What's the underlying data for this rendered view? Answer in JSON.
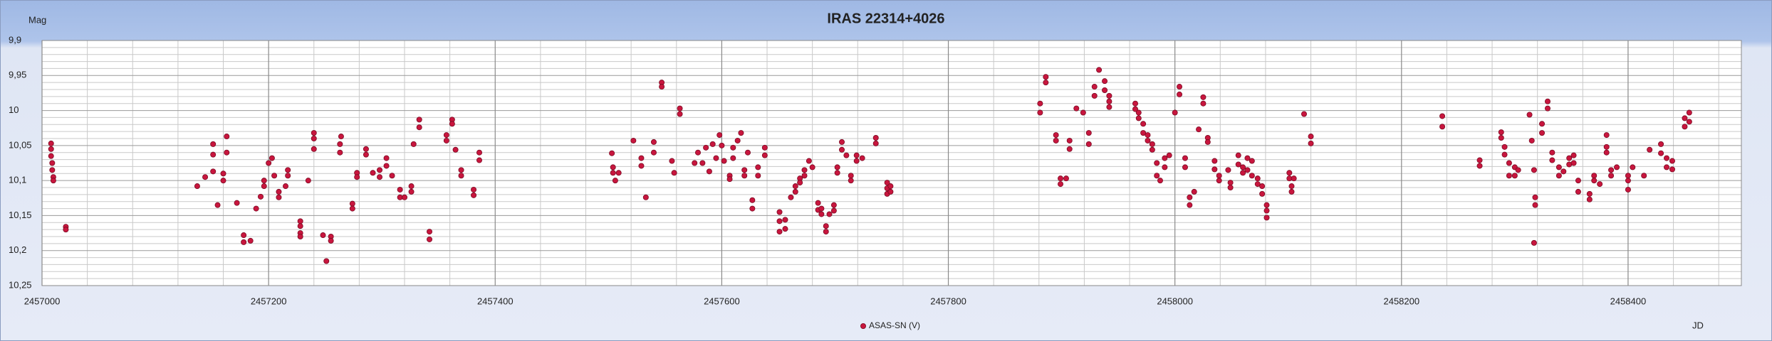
{
  "chart_data": {
    "type": "scatter",
    "title": "IRAS 22314+4026",
    "ylabel": "Mag",
    "xlabel": "JD",
    "xlim": [
      2457000,
      2458500
    ],
    "xticks": [
      2457000,
      2457200,
      2457400,
      2457600,
      2457800,
      2458000,
      2458200,
      2458400
    ],
    "ylim": [
      9.9,
      10.25
    ],
    "y_inverted": true,
    "yticks": [
      {
        "value": 9.9,
        "label": "9,9"
      },
      {
        "value": 9.95,
        "label": "9,95"
      },
      10,
      {
        "value": 10.05,
        "label": "10,05"
      },
      {
        "value": 10.1,
        "label": "10,1"
      },
      {
        "value": 10.15,
        "label": "10,15"
      },
      {
        "value": 10.2,
        "label": "10,2"
      },
      {
        "value": 10.25,
        "label": "10,25"
      }
    ],
    "grid": true,
    "legend": "bottom",
    "x": [
      2457008,
      2457008,
      2457008,
      2457009,
      2457009,
      2457010,
      2457010,
      2457021,
      2457021,
      2457137,
      2457144,
      2457151,
      2457151,
      2457151,
      2457155,
      2457160,
      2457160,
      2457163,
      2457163,
      2457172,
      2457178,
      2457178,
      2457184,
      2457189,
      2457193,
      2457196,
      2457196,
      2457200,
      2457203,
      2457205,
      2457209,
      2457209,
      2457215,
      2457217,
      2457217,
      2457228,
      2457228,
      2457228,
      2457228,
      2457235,
      2457240,
      2457240,
      2457240,
      2457248,
      2457251,
      2457255,
      2457255,
      2457263,
      2457263,
      2457264,
      2457274,
      2457274,
      2457278,
      2457278,
      2457286,
      2457286,
      2457292,
      2457298,
      2457298,
      2457304,
      2457304,
      2457309,
      2457316,
      2457316,
      2457320,
      2457326,
      2457326,
      2457328,
      2457333,
      2457333,
      2457342,
      2457342,
      2457357,
      2457357,
      2457362,
      2457362,
      2457365,
      2457370,
      2457370,
      2457381,
      2457381,
      2457386,
      2457386,
      2457503,
      2457504,
      2457504,
      2457506,
      2457509,
      2457522,
      2457529,
      2457529,
      2457533,
      2457540,
      2457540,
      2457547,
      2457547,
      2457556,
      2457558,
      2457563,
      2457563,
      2457576,
      2457579,
      2457583,
      2457586,
      2457589,
      2457592,
      2457595,
      2457598,
      2457600,
      2457602,
      2457607,
      2457607,
      2457610,
      2457610,
      2457614,
      2457617,
      2457620,
      2457620,
      2457623,
      2457627,
      2457627,
      2457632,
      2457632,
      2457638,
      2457638,
      2457651,
      2457651,
      2457651,
      2457656,
      2457656,
      2457661,
      2457665,
      2457665,
      2457669,
      2457669,
      2457673,
      2457673,
      2457677,
      2457680,
      2457685,
      2457685,
      2457688,
      2457688,
      2457692,
      2457692,
      2457695,
      2457699,
      2457699,
      2457702,
      2457702,
      2457706,
      2457706,
      2457710,
      2457714,
      2457714,
      2457719,
      2457719,
      2457724,
      2457736,
      2457736,
      2457746,
      2457746,
      2457746,
      2457749,
      2457749,
      2457881,
      2457881,
      2457886,
      2457886,
      2457895,
      2457895,
      2457899,
      2457899,
      2457904,
      2457907,
      2457907,
      2457913,
      2457919,
      2457924,
      2457924,
      2457929,
      2457929,
      2457933,
      2457938,
      2457938,
      2457942,
      2457942,
      2457942,
      2457965,
      2457965,
      2457968,
      2457968,
      2457972,
      2457972,
      2457976,
      2457976,
      2457980,
      2457980,
      2457984,
      2457984,
      2457987,
      2457991,
      2457991,
      2457995,
      2458000,
      2458004,
      2458004,
      2458009,
      2458009,
      2458013,
      2458013,
      2458017,
      2458021,
      2458025,
      2458025,
      2458029,
      2458029,
      2458035,
      2458035,
      2458039,
      2458039,
      2458047,
      2458049,
      2458049,
      2458056,
      2458056,
      2458060,
      2458060,
      2458064,
      2458064,
      2458068,
      2458068,
      2458073,
      2458073,
      2458077,
      2458077,
      2458081,
      2458081,
      2458081,
      2458101,
      2458101,
      2458103,
      2458103,
      2458105,
      2458114,
      2458120,
      2458120,
      2458236,
      2458236,
      2458269,
      2458269,
      2458288,
      2458288,
      2458291,
      2458291,
      2458295,
      2458295,
      2458300,
      2458300,
      2458303,
      2458313,
      2458315,
      2458317,
      2458318,
      2458318,
      2458317,
      2458324,
      2458324,
      2458329,
      2458329,
      2458333,
      2458333,
      2458339,
      2458339,
      2458343,
      2458348,
      2458348,
      2458352,
      2458352,
      2458356,
      2458356,
      2458366,
      2458366,
      2458370,
      2458370,
      2458375,
      2458381,
      2458381,
      2458381,
      2458385,
      2458385,
      2458390,
      2458400,
      2458400,
      2458400,
      2458404,
      2458414,
      2458419,
      2458429,
      2458429,
      2458434,
      2458434,
      2458439,
      2458439,
      2458450,
      2458450,
      2458454,
      2458454
    ],
    "series": [
      {
        "name": "ASAS-SN (V)",
        "color": "#c8163e",
        "values": [
          10.047,
          10.055,
          10.065,
          10.075,
          10.085,
          10.095,
          10.1,
          10.166,
          10.17,
          10.108,
          10.095,
          10.048,
          10.063,
          10.087,
          10.135,
          10.09,
          10.1,
          10.037,
          10.06,
          10.132,
          10.178,
          10.188,
          10.186,
          10.14,
          10.123,
          10.1,
          10.108,
          10.075,
          10.068,
          10.093,
          10.116,
          10.124,
          10.108,
          10.085,
          10.093,
          10.158,
          10.165,
          10.175,
          10.18,
          10.1,
          10.032,
          10.04,
          10.055,
          10.178,
          10.215,
          10.18,
          10.186,
          10.048,
          10.06,
          10.037,
          10.133,
          10.14,
          10.089,
          10.095,
          10.055,
          10.063,
          10.089,
          10.085,
          10.095,
          10.068,
          10.079,
          10.093,
          10.113,
          10.124,
          10.124,
          10.108,
          10.116,
          10.048,
          10.013,
          10.024,
          10.173,
          10.184,
          10.035,
          10.043,
          10.013,
          10.019,
          10.056,
          10.085,
          10.093,
          10.113,
          10.121,
          10.06,
          10.071,
          10.061,
          10.081,
          10.089,
          10.1,
          10.089,
          10.043,
          10.068,
          10.079,
          10.124,
          10.045,
          10.06,
          9.96,
          9.966,
          10.072,
          10.089,
          9.997,
          10.005,
          10.075,
          10.06,
          10.075,
          10.053,
          10.087,
          10.048,
          10.068,
          10.035,
          10.05,
          10.072,
          10.093,
          10.098,
          10.053,
          10.068,
          10.043,
          10.032,
          10.085,
          10.093,
          10.06,
          10.128,
          10.14,
          10.081,
          10.093,
          10.053,
          10.064,
          10.145,
          10.158,
          10.173,
          10.156,
          10.169,
          10.124,
          10.108,
          10.116,
          10.097,
          10.103,
          10.085,
          10.093,
          10.072,
          10.081,
          10.132,
          10.142,
          10.14,
          10.148,
          10.165,
          10.173,
          10.148,
          10.135,
          10.143,
          10.081,
          10.089,
          10.045,
          10.056,
          10.064,
          10.093,
          10.1,
          10.064,
          10.072,
          10.068,
          10.039,
          10.047,
          10.103,
          10.111,
          10.119,
          10.108,
          10.116,
          9.99,
          10.003,
          9.952,
          9.96,
          10.035,
          10.043,
          10.097,
          10.105,
          10.097,
          10.043,
          10.055,
          9.997,
          10.003,
          10.032,
          10.048,
          9.966,
          9.979,
          9.942,
          9.958,
          9.971,
          9.979,
          9.987,
          9.995,
          9.99,
          9.998,
          10.003,
          10.011,
          10.019,
          10.032,
          10.035,
          10.043,
          10.048,
          10.056,
          10.075,
          10.093,
          10.1,
          10.068,
          10.081,
          10.064,
          10.003,
          9.966,
          9.977,
          10.068,
          10.081,
          10.124,
          10.135,
          10.116,
          10.027,
          9.981,
          9.99,
          10.039,
          10.045,
          10.072,
          10.084,
          10.093,
          10.1,
          10.085,
          10.103,
          10.11,
          10.064,
          10.077,
          10.081,
          10.089,
          10.068,
          10.085,
          10.072,
          10.093,
          10.097,
          10.105,
          10.108,
          10.119,
          10.135,
          10.143,
          10.153,
          10.089,
          10.097,
          10.108,
          10.116,
          10.097,
          10.005,
          10.037,
          10.047,
          10.008,
          10.023,
          10.071,
          10.079,
          10.031,
          10.039,
          10.052,
          10.063,
          10.075,
          10.093,
          10.081,
          10.093,
          10.085,
          10.006,
          10.043,
          10.085,
          10.124,
          10.135,
          10.189,
          10.019,
          10.032,
          9.987,
          9.997,
          10.06,
          10.071,
          10.081,
          10.093,
          10.087,
          10.068,
          10.077,
          10.064,
          10.075,
          10.1,
          10.116,
          10.119,
          10.127,
          10.093,
          10.1,
          10.105,
          10.035,
          10.052,
          10.06,
          10.085,
          10.093,
          10.081,
          10.093,
          10.1,
          10.113,
          10.081,
          10.093,
          10.056,
          10.048,
          10.061,
          10.068,
          10.081,
          10.072,
          10.084,
          10.011,
          10.023,
          10.003,
          10.016
        ]
      }
    ]
  }
}
